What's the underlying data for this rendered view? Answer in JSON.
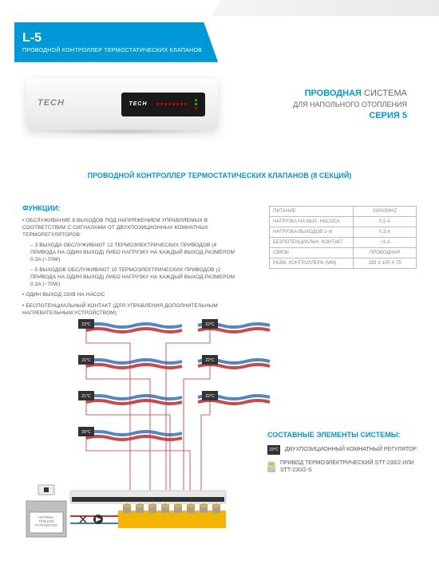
{
  "colors": {
    "brand_blue": "#0099d8",
    "text_grey": "#555",
    "light_grey": "#888",
    "border": "#bbb",
    "red_wire": "#c33",
    "blue_wire": "#3a7cc4",
    "manifold": "#f4b400",
    "actuator_grey": "#a0a0a0",
    "heater_grey": "#b5b5b5"
  },
  "header": {
    "model": "L-5",
    "subtitle": "ПРОВОДНОЙ КОНТРОЛЛЕР ТЕРМОСТАТИЧЕСКИХ КЛАПАНОВ"
  },
  "device": {
    "brand": "TECH",
    "panel_logo": "TECH",
    "variant": "L-5"
  },
  "tagline": {
    "l1a": "ПРОВОДНАЯ",
    "l1b": "СИСТЕМА",
    "l2": "ДЛЯ НАПОЛЬНОГО ОТОПЛЕНИЯ",
    "l3": "СЕРИЯ 5"
  },
  "section_title": "ПРОВОДНОЙ КОНТРОЛЛЕР ТЕРМОСТАТИЧЕСКИХ КЛАПАНОВ (8 СЕКЦИЙ)",
  "functions": {
    "heading": "ФУНКЦИИ:",
    "main1": "• ОБСЛУЖИВАНИЕ 8 ВЫХОДОВ ПОД НАПРЯЖЕНИЕМ УПРАВЛЯЕМЫХ В СООТВЕТСТВИИ С СИГНАЛАМИ ОТ ДВУХПОЗИЦИОННЫХ КОМНАТНЫХ ТЕРМОРЕГУЛЯТОРОВ:",
    "sub1": "– 3 ВЫХОДА ОБСЛУЖИВАЮТ 12 ТЕРМОЭЛЕКТРИЧЕСКИХ ПРИВОДОВ (4 ПРИВОДА НА ОДИН ВЫХОД) ЛИБО НАГРУЗКУ НА КАЖДЫЙ ВЫХОД РАЗМЕРОМ 0,3A (~70W)",
    "sub2": "– 5 ВЫХОДОВ ОБСЛУЖИВАЮТ 10 ТЕРМОЭЛЕКТРИЧЕСКИХ ПРИВОДОВ (2 ПРИВОДА НА ОДИН ВЫХОД) ЛИБО НАГРУЗКУ НА КАЖДЫЙ ВЫХОД РАЗМЕРОМ 0,3A (~70W)",
    "main2": "• ОДИН ВЫХОД 230В НА НАСОС",
    "main3": "• БЕСПОТЕНЦИАЛЬНЫЙ КОНТАКТ (ДЛЯ УПРАВЛЕНИЯ ДОПОЛНИТЕЛЬНЫМ НАГРЕВАТЕЛЬНЫМ УСТРОЙСТВОМ)"
  },
  "spec": {
    "rows": [
      {
        "k": "ПИТАНИЕ",
        "v": "230V/50HZ"
      },
      {
        "k": "НАГРУЗКА НА ВЫХ. НАСОСА",
        "v": "0,5 A"
      },
      {
        "k": "НАГРУЗКА ВЫХОДОВ 1–8",
        "v": "0,3 A"
      },
      {
        "k": "БЕЗПОТЕНЦИАЛЬН. КОНТАКТ",
        "v": "~/1 A"
      },
      {
        "k": "СВЯЗЬ",
        "v": "ПРОВОДНАЯ"
      },
      {
        "k": "РАЗМ. КОНТРОЛЛЕРА (MM)",
        "v": "335 X 105 X 75"
      }
    ]
  },
  "legend": {
    "heading": "СОСТАВНЫЕ ЭЛЕМЕНТЫ СИСТЕМЫ:",
    "item1": "ДВУХПОЗИЦИОННЫЙ КОМНАТНЫЙ РЕГУЛЯТОР",
    "item1_badge": "23°C",
    "item2": "ПРИВОД ТЕРМОЭЛЕКТРИЧЕСКИЙ STT-230/2 ИЛИ STT-230/2-S"
  },
  "diagram": {
    "thermostats": [
      "23°C",
      "21°C",
      "21°C",
      "20°C",
      "22°C",
      "22°C",
      "22°C"
    ],
    "loop_colors": {
      "supply": "#c33",
      "return": "#3a7cc4"
    },
    "heater_label": "НАГРЕВА-\nТЕЛЬНОЕ\nУСТРОЙСТВО"
  }
}
